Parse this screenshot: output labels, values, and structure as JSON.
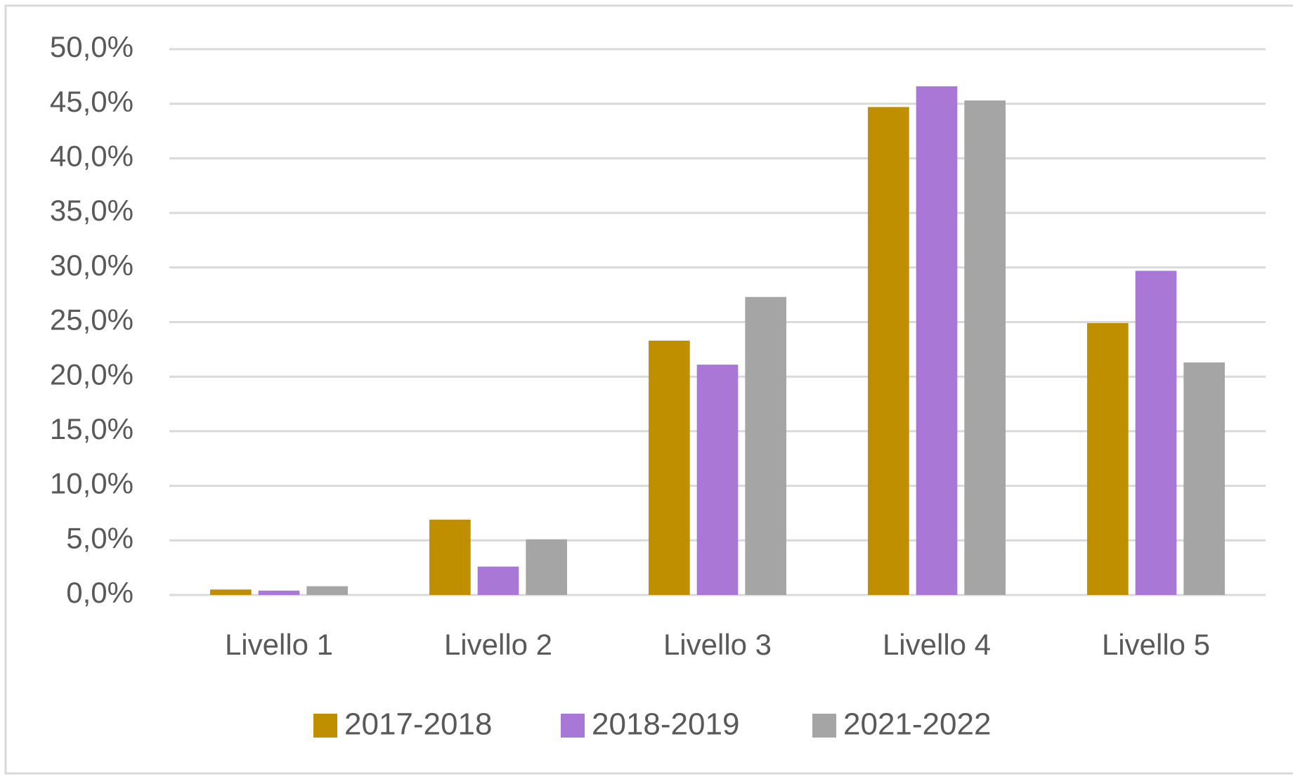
{
  "chart_data": {
    "type": "bar",
    "categories": [
      "Livello 1",
      "Livello 2",
      "Livello 3",
      "Livello 4",
      "Livello 5"
    ],
    "series": [
      {
        "name": "2017-2018",
        "color": "#bf8f00",
        "values": [
          0.5,
          6.9,
          23.3,
          44.7,
          24.9
        ]
      },
      {
        "name": "2018-2019",
        "color": "#a977d6",
        "values": [
          0.4,
          2.6,
          21.1,
          46.6,
          29.7
        ]
      },
      {
        "name": "2021-2022",
        "color": "#a5a5a5",
        "values": [
          0.8,
          5.1,
          27.3,
          45.3,
          21.3
        ]
      }
    ],
    "ylim": [
      0,
      50
    ],
    "yticks": [
      {
        "value": 0,
        "label": "0,0%"
      },
      {
        "value": 5,
        "label": "5,0%"
      },
      {
        "value": 10,
        "label": "10,0%"
      },
      {
        "value": 15,
        "label": "15,0%"
      },
      {
        "value": 20,
        "label": "20,0%"
      },
      {
        "value": 25,
        "label": "25,0%"
      },
      {
        "value": 30,
        "label": "30,0%"
      },
      {
        "value": 35,
        "label": "35,0%"
      },
      {
        "value": 40,
        "label": "40,0%"
      },
      {
        "value": 45,
        "label": "45,0%"
      },
      {
        "value": 50,
        "label": "50,0%"
      }
    ],
    "grid": true,
    "legend": "bottom"
  }
}
